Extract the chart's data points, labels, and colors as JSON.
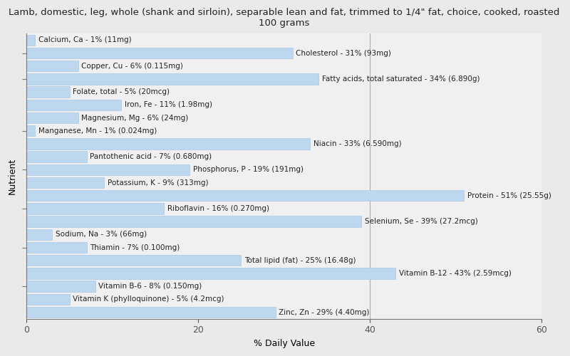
{
  "title": "Lamb, domestic, leg, whole (shank and sirloin), separable lean and fat, trimmed to 1/4\" fat, choice, cooked, roasted\n100 grams",
  "xlabel": "% Daily Value",
  "ylabel": "Nutrient",
  "xlim": [
    0,
    60
  ],
  "xticks": [
    0,
    20,
    40,
    60
  ],
  "background_color": "#eaeaea",
  "plot_bg_color": "#f0f0f0",
  "bar_color": "#bdd7ee",
  "bar_edge_color": "#9ec6e8",
  "ref_line_color": "#aaaaaa",
  "text_color": "#222222",
  "label_fontsize": 7.5,
  "title_fontsize": 9.5,
  "nutrients": [
    {
      "label": "Calcium, Ca - 1% (11mg)",
      "value": 1
    },
    {
      "label": "Cholesterol - 31% (93mg)",
      "value": 31
    },
    {
      "label": "Copper, Cu - 6% (0.115mg)",
      "value": 6
    },
    {
      "label": "Fatty acids, total saturated - 34% (6.890g)",
      "value": 34
    },
    {
      "label": "Folate, total - 5% (20mcg)",
      "value": 5
    },
    {
      "label": "Iron, Fe - 11% (1.98mg)",
      "value": 11
    },
    {
      "label": "Magnesium, Mg - 6% (24mg)",
      "value": 6
    },
    {
      "label": "Manganese, Mn - 1% (0.024mg)",
      "value": 1
    },
    {
      "label": "Niacin - 33% (6.590mg)",
      "value": 33
    },
    {
      "label": "Pantothenic acid - 7% (0.680mg)",
      "value": 7
    },
    {
      "label": "Phosphorus, P - 19% (191mg)",
      "value": 19
    },
    {
      "label": "Potassium, K - 9% (313mg)",
      "value": 9
    },
    {
      "label": "Protein - 51% (25.55g)",
      "value": 51
    },
    {
      "label": "Riboflavin - 16% (0.270mg)",
      "value": 16
    },
    {
      "label": "Selenium, Se - 39% (27.2mcg)",
      "value": 39
    },
    {
      "label": "Sodium, Na - 3% (66mg)",
      "value": 3
    },
    {
      "label": "Thiamin - 7% (0.100mg)",
      "value": 7
    },
    {
      "label": "Total lipid (fat) - 25% (16.48g)",
      "value": 25
    },
    {
      "label": "Vitamin B-12 - 43% (2.59mcg)",
      "value": 43
    },
    {
      "label": "Vitamin B-6 - 8% (0.150mg)",
      "value": 8
    },
    {
      "label": "Vitamin K (phylloquinone) - 5% (4.2mcg)",
      "value": 5
    },
    {
      "label": "Zinc, Zn - 29% (4.40mg)",
      "value": 29
    }
  ],
  "ytick_positions": [
    1,
    3,
    7,
    10,
    13,
    16,
    19
  ]
}
